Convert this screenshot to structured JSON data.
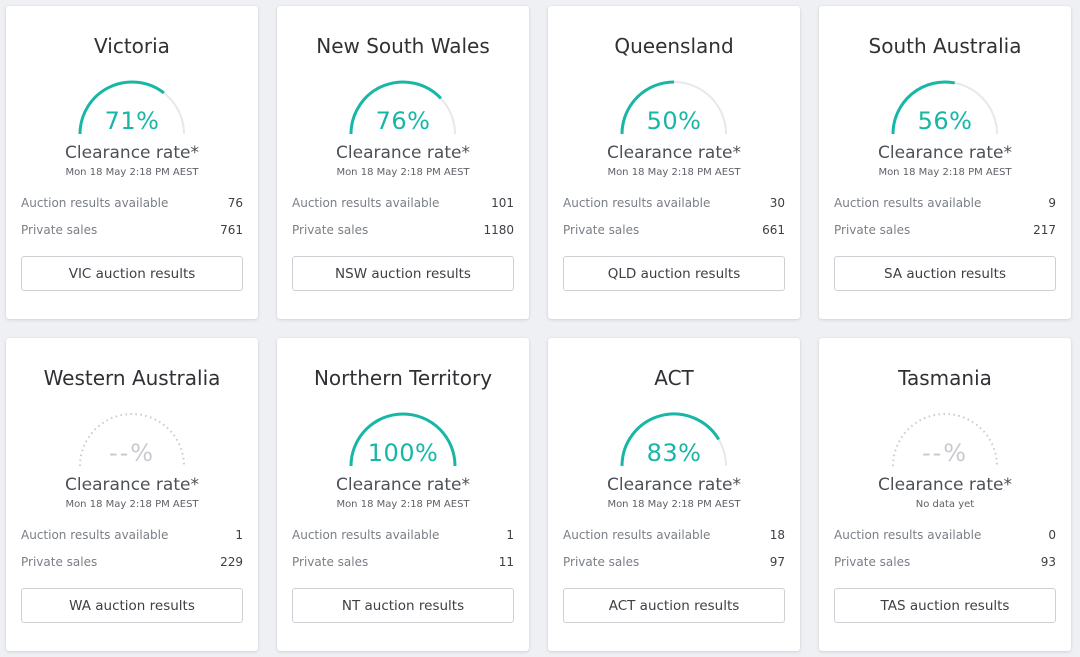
{
  "theme": {
    "accent": "#17b6a6",
    "track": "#e6e8eb",
    "empty": "#c7cacf"
  },
  "clearance_label": "Clearance rate*",
  "auction_label": "Auction results available",
  "private_label": "Private sales",
  "cards": [
    {
      "title": "Victoria",
      "percent_text": "71%",
      "rate": 0.71,
      "date": "Mon 18 May 2:18 PM AEST",
      "auction": "76",
      "private": "761",
      "button": "VIC auction results"
    },
    {
      "title": "New South Wales",
      "percent_text": "76%",
      "rate": 0.76,
      "date": "Mon 18 May 2:18 PM AEST",
      "auction": "101",
      "private": "1180",
      "button": "NSW auction results"
    },
    {
      "title": "Queensland",
      "percent_text": "50%",
      "rate": 0.5,
      "date": "Mon 18 May 2:18 PM AEST",
      "auction": "30",
      "private": "661",
      "button": "QLD auction results"
    },
    {
      "title": "South Australia",
      "percent_text": "56%",
      "rate": 0.56,
      "date": "Mon 18 May 2:18 PM AEST",
      "auction": "9",
      "private": "217",
      "button": "SA auction results"
    },
    {
      "title": "Western Australia",
      "percent_text": "--%",
      "rate": null,
      "date": "Mon 18 May 2:18 PM AEST",
      "auction": "1",
      "private": "229",
      "button": "WA auction results"
    },
    {
      "title": "Northern Territory",
      "percent_text": "100%",
      "rate": 1.0,
      "date": "Mon 18 May 2:18 PM AEST",
      "auction": "1",
      "private": "11",
      "button": "NT auction results"
    },
    {
      "title": "ACT",
      "percent_text": "83%",
      "rate": 0.83,
      "date": "Mon 18 May 2:18 PM AEST",
      "auction": "18",
      "private": "97",
      "button": "ACT auction results"
    },
    {
      "title": "Tasmania",
      "percent_text": "--%",
      "rate": null,
      "date": "No data yet",
      "auction": "0",
      "private": "93",
      "button": "TAS auction results"
    }
  ]
}
